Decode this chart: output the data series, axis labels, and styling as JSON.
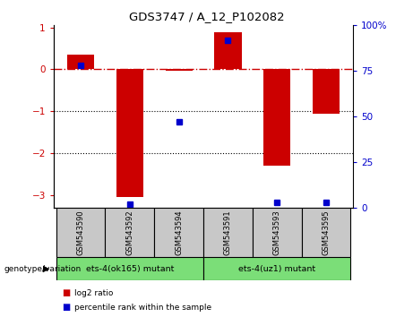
{
  "title": "GDS3747 / A_12_P102082",
  "samples": [
    "GSM543590",
    "GSM543592",
    "GSM543594",
    "GSM543591",
    "GSM543593",
    "GSM543595"
  ],
  "log2_ratio": [
    0.35,
    -3.05,
    -0.03,
    0.88,
    -2.3,
    -1.05
  ],
  "percentile_rank": [
    78,
    2,
    47,
    92,
    3,
    3
  ],
  "ylim_left": [
    -3.3,
    1.05
  ],
  "ylim_right": [
    0,
    100
  ],
  "yticks_left": [
    -3,
    -2,
    -1,
    0,
    1
  ],
  "yticks_right": [
    0,
    25,
    50,
    75,
    100
  ],
  "ytick_right_labels": [
    "0",
    "25",
    "50",
    "75",
    "100%"
  ],
  "bar_color": "#cc0000",
  "dot_color": "#0000cc",
  "dash_color": "#cc0000",
  "sample_bg_color": "#c8c8c8",
  "group1_label": "ets-4(ok165) mutant",
  "group2_label": "ets-4(uz1) mutant",
  "group_color": "#7bde78",
  "legend_log2_color": "#cc0000",
  "legend_pct_color": "#0000cc",
  "genotype_label": "genotype/variation"
}
